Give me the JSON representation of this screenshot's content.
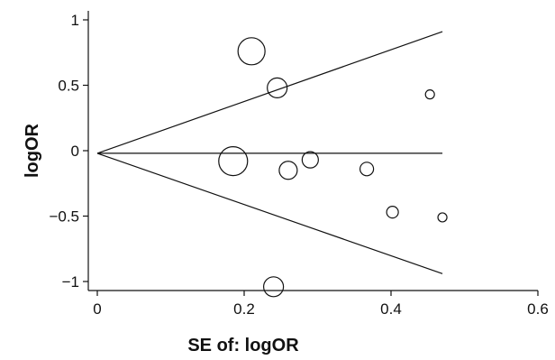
{
  "chart_data": {
    "type": "scatter",
    "subtype": "funnel-plot",
    "xlabel": "SE of: logOR",
    "ylabel": "logOR",
    "xlim": [
      0,
      0.6
    ],
    "ylim": [
      -1.05,
      1.05
    ],
    "xticks": [
      {
        "value": 0,
        "label": "0"
      },
      {
        "value": 0.2,
        "label": "0.2"
      },
      {
        "value": 0.4,
        "label": "0.4"
      },
      {
        "value": 0.6,
        "label": "0.6"
      }
    ],
    "yticks": [
      {
        "value": 1,
        "label": "1"
      },
      {
        "value": 0.5,
        "label": "0.5"
      },
      {
        "value": 0,
        "label": "0"
      },
      {
        "value": -0.5,
        "label": "−0.5"
      },
      {
        "value": -1,
        "label": "−1"
      }
    ],
    "grid": false,
    "legend": "none",
    "colors": {
      "marker_stroke": "#111111",
      "line": "#111111",
      "axis": "#111111"
    },
    "reference_lines": {
      "pooled_estimate": -0.02,
      "x_end": 0.47,
      "upper_end": 0.91,
      "lower_end": -0.94
    },
    "points": [
      {
        "x": 0.21,
        "y": 0.76,
        "weight": 3
      },
      {
        "x": 0.245,
        "y": 0.48,
        "weight": 2.2
      },
      {
        "x": 0.453,
        "y": 0.43,
        "weight": 1
      },
      {
        "x": 0.185,
        "y": -0.08,
        "weight": 3.2
      },
      {
        "x": 0.26,
        "y": -0.15,
        "weight": 2
      },
      {
        "x": 0.29,
        "y": -0.07,
        "weight": 1.8
      },
      {
        "x": 0.367,
        "y": -0.14,
        "weight": 1.5
      },
      {
        "x": 0.402,
        "y": -0.47,
        "weight": 1.3
      },
      {
        "x": 0.47,
        "y": -0.51,
        "weight": 1
      },
      {
        "x": 0.24,
        "y": -1.04,
        "weight": 2.2
      }
    ]
  }
}
